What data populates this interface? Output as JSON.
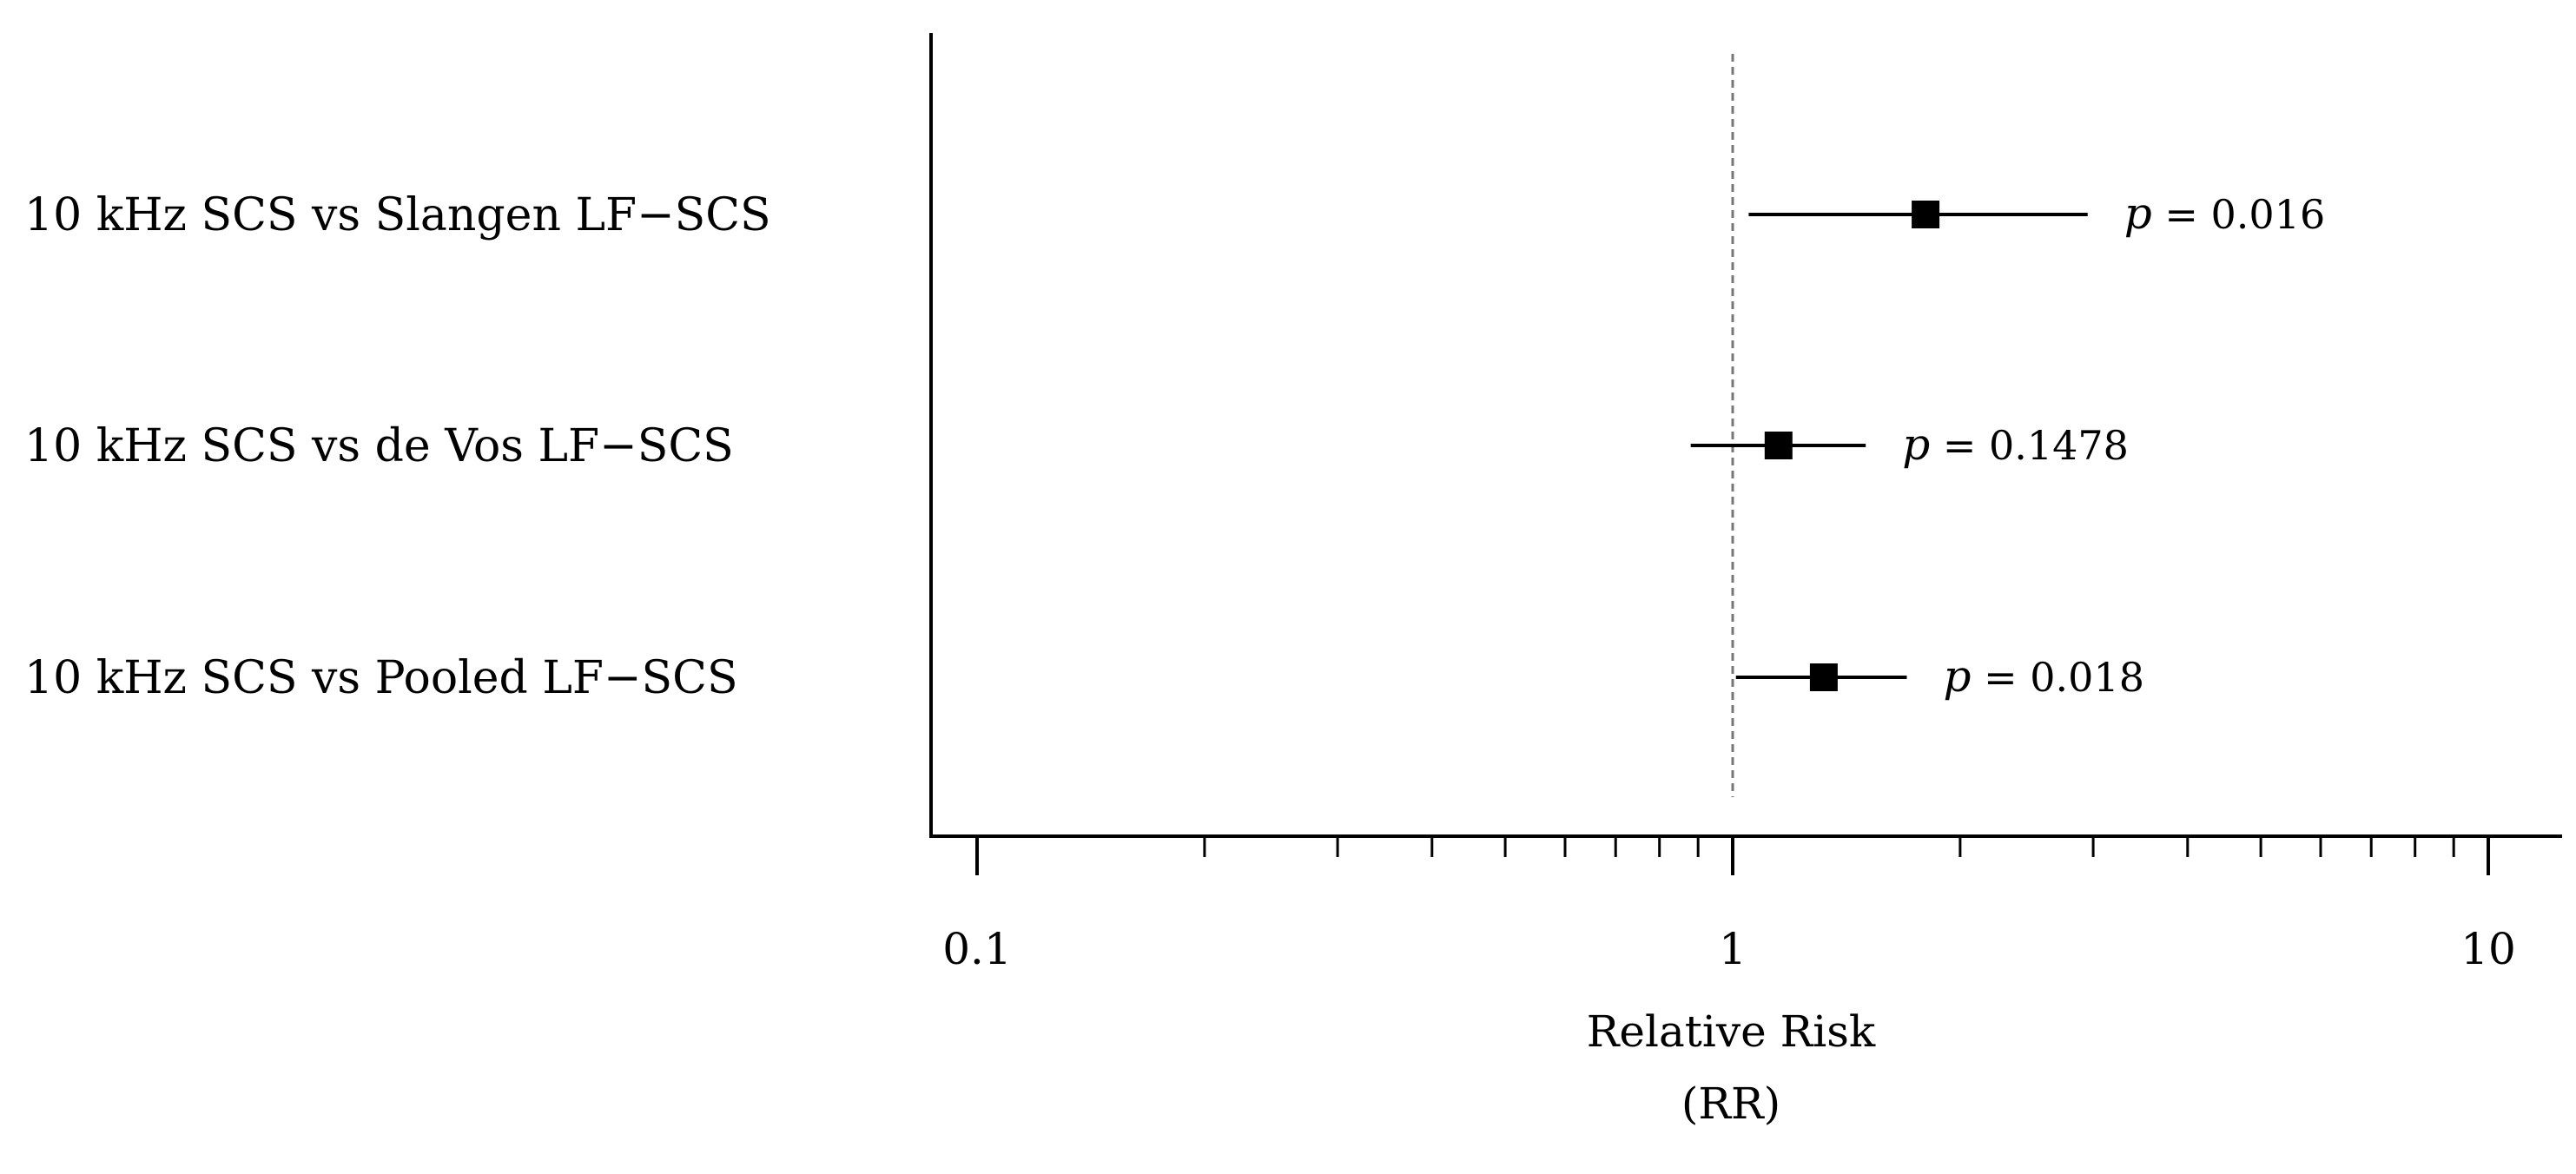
{
  "chart_data": {
    "type": "forest",
    "x_scale": "log",
    "xlim": [
      0.09,
      12.5
    ],
    "reference_line": 1,
    "x_ticks": [
      {
        "value": 0.1,
        "label": "0.1"
      },
      {
        "value": 1,
        "label": "1"
      },
      {
        "value": 10,
        "label": "10"
      }
    ],
    "minor_ticks": [
      0.2,
      0.3,
      0.4,
      0.5,
      0.6,
      0.7,
      0.8,
      0.9,
      2,
      3,
      4,
      5,
      6,
      7,
      8,
      9
    ],
    "xlabel": [
      "Relative Risk",
      "(RR)"
    ],
    "rows": [
      {
        "label": "10 kHz SCS vs Slangen LF−SCS",
        "estimate": 1.8,
        "ci": [
          1.05,
          2.95
        ],
        "p_prefix": "p",
        "p_text": " = 0.016"
      },
      {
        "label": "10 kHz SCS vs de Vos LF−SCS",
        "estimate": 1.15,
        "ci": [
          0.88,
          1.5
        ],
        "p_prefix": "p",
        "p_text": " = 0.1478"
      },
      {
        "label": "10 kHz SCS vs Pooled LF−SCS",
        "estimate": 1.32,
        "ci": [
          1.01,
          1.7
        ],
        "p_prefix": "p",
        "p_text": " = 0.018"
      }
    ]
  }
}
